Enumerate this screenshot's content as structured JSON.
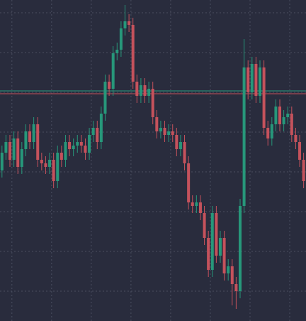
{
  "chart_data": {
    "type": "candlestick",
    "x": [
      0,
      1,
      2,
      3,
      4,
      5,
      6,
      7,
      8,
      9,
      10,
      11,
      12,
      13,
      14,
      15,
      16,
      17,
      18,
      19,
      20,
      21,
      22,
      23,
      24,
      25,
      26,
      27,
      28,
      29,
      30,
      31,
      32,
      33,
      34,
      35,
      36,
      37,
      38,
      39,
      40,
      41,
      42,
      43,
      44,
      45,
      46,
      47,
      48,
      49,
      50,
      51,
      52,
      53,
      54,
      55,
      56,
      57,
      58,
      59,
      60,
      61,
      62,
      63,
      64,
      65,
      66,
      67,
      68,
      69,
      70,
      71,
      72,
      73,
      74,
      75,
      76
    ],
    "open": [
      212,
      237,
      252,
      227,
      257,
      217,
      242,
      267,
      252,
      277,
      227,
      222,
      217,
      227,
      197,
      237,
      227,
      252,
      242,
      247,
      252,
      247,
      237,
      262,
      272,
      252,
      292,
      337,
      327,
      377,
      382,
      412,
      422,
      417,
      337,
      317,
      332,
      317,
      327,
      287,
      267,
      272,
      262,
      267,
      262,
      242,
      252,
      222,
      167,
      162,
      167,
      152,
      117,
      72,
      152,
      92,
      117,
      67,
      77,
      52,
      42,
      162,
      357,
      322,
      362,
      317,
      357,
      272,
      257,
      277,
      302,
      277,
      287,
      292,
      262,
      252,
      227
    ],
    "high": [
      247,
      262,
      262,
      267,
      267,
      252,
      277,
      277,
      287,
      287,
      237,
      232,
      237,
      237,
      247,
      247,
      262,
      262,
      257,
      262,
      262,
      257,
      272,
      282,
      282,
      302,
      347,
      347,
      387,
      392,
      422,
      445,
      432,
      427,
      347,
      342,
      342,
      337,
      337,
      297,
      282,
      282,
      277,
      277,
      272,
      262,
      262,
      232,
      177,
      177,
      177,
      162,
      127,
      162,
      162,
      127,
      127,
      87,
      87,
      62,
      172,
      397,
      367,
      372,
      372,
      367,
      367,
      282,
      287,
      312,
      312,
      297,
      302,
      302,
      272,
      262,
      237
    ],
    "low": [
      202,
      227,
      217,
      217,
      207,
      207,
      232,
      242,
      242,
      217,
      212,
      207,
      207,
      187,
      187,
      217,
      217,
      232,
      232,
      237,
      237,
      227,
      227,
      252,
      242,
      242,
      282,
      317,
      317,
      367,
      372,
      402,
      407,
      327,
      307,
      307,
      307,
      307,
      277,
      257,
      257,
      252,
      252,
      252,
      232,
      232,
      212,
      157,
      152,
      152,
      142,
      107,
      62,
      62,
      82,
      82,
      57,
      57,
      22,
      17,
      32,
      152,
      312,
      312,
      307,
      307,
      262,
      247,
      247,
      267,
      267,
      267,
      277,
      252,
      242,
      217,
      187
    ],
    "close": [
      237,
      252,
      227,
      257,
      217,
      242,
      267,
      252,
      277,
      227,
      222,
      217,
      227,
      197,
      237,
      227,
      252,
      242,
      247,
      252,
      247,
      237,
      262,
      272,
      252,
      292,
      337,
      327,
      377,
      382,
      412,
      422,
      417,
      337,
      317,
      332,
      317,
      327,
      287,
      267,
      272,
      262,
      267,
      262,
      242,
      252,
      222,
      167,
      162,
      167,
      152,
      117,
      72,
      152,
      92,
      117,
      67,
      77,
      52,
      42,
      162,
      357,
      322,
      362,
      317,
      357,
      272,
      257,
      277,
      302,
      277,
      287,
      292,
      262,
      252,
      227,
      197
    ],
    "up_color": "#27977a",
    "down_color": "#c5525c",
    "xlim": [
      -0.5,
      76.6
    ],
    "xticks": [
      2.5,
      12.5,
      22.5,
      32.5,
      42.5,
      52.5,
      62.5,
      72.5
    ],
    "ylim": [
      0,
      452
    ],
    "yticks": [
      434,
      378,
      322,
      266,
      210,
      154,
      98,
      42
    ],
    "grid": true,
    "lines": [
      {
        "value": 324,
        "color": "#2a9d7f"
      },
      {
        "value": 320,
        "color": "#c5525c"
      }
    ]
  }
}
